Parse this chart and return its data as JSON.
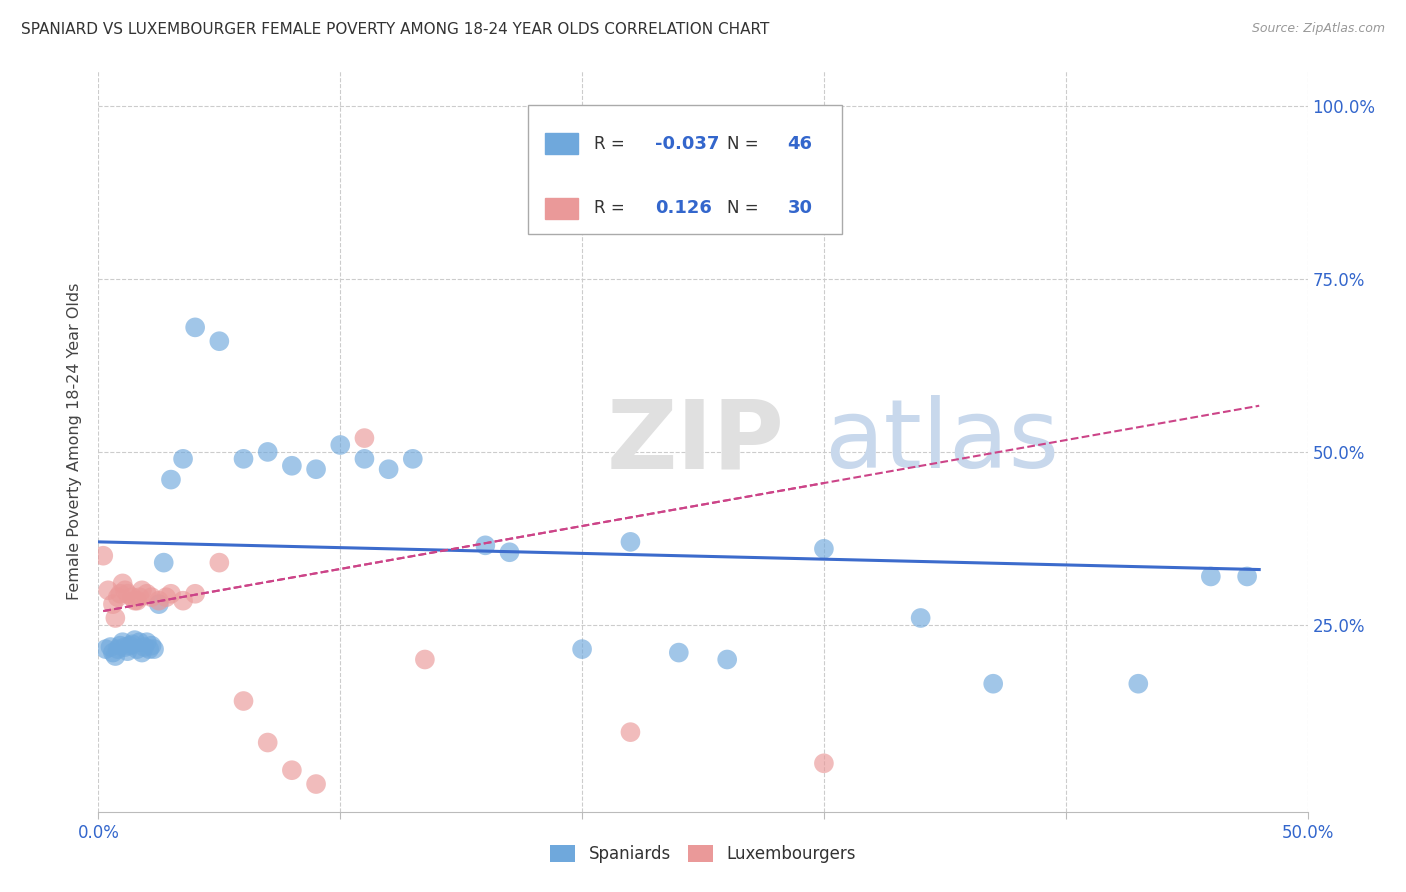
{
  "title": "SPANIARD VS LUXEMBOURGER FEMALE POVERTY AMONG 18-24 YEAR OLDS CORRELATION CHART",
  "source": "Source: ZipAtlas.com",
  "ylabel": "Female Poverty Among 18-24 Year Olds",
  "xlim": [
    0.0,
    0.5
  ],
  "ylim": [
    -0.02,
    1.05
  ],
  "xticks": [
    0.0,
    0.1,
    0.2,
    0.3,
    0.4,
    0.5
  ],
  "xtick_labels_show": [
    "0.0%",
    "",
    "",
    "",
    "",
    "50.0%"
  ],
  "ytick_vals": [
    0.25,
    0.5,
    0.75,
    1.0
  ],
  "ytick_labels": [
    "25.0%",
    "50.0%",
    "75.0%",
    "100.0%"
  ],
  "blue_color": "#6fa8dc",
  "pink_color": "#ea9999",
  "blue_line_color": "#3c6bcc",
  "pink_line_color": "#cc4488",
  "legend_R_blue": "-0.037",
  "legend_N_blue": "46",
  "legend_R_pink": "0.126",
  "legend_N_pink": "30",
  "spaniards_x": [
    0.003,
    0.005,
    0.006,
    0.007,
    0.008,
    0.009,
    0.01,
    0.011,
    0.012,
    0.013,
    0.014,
    0.015,
    0.016,
    0.017,
    0.018,
    0.019,
    0.02,
    0.021,
    0.022,
    0.023,
    0.025,
    0.027,
    0.03,
    0.035,
    0.04,
    0.05,
    0.06,
    0.07,
    0.08,
    0.09,
    0.1,
    0.11,
    0.12,
    0.13,
    0.16,
    0.17,
    0.2,
    0.22,
    0.24,
    0.26,
    0.3,
    0.34,
    0.37,
    0.43,
    0.46,
    0.475
  ],
  "spaniards_y": [
    0.215,
    0.218,
    0.21,
    0.205,
    0.215,
    0.22,
    0.225,
    0.218,
    0.212,
    0.22,
    0.222,
    0.228,
    0.215,
    0.225,
    0.21,
    0.218,
    0.225,
    0.215,
    0.22,
    0.215,
    0.28,
    0.34,
    0.46,
    0.49,
    0.68,
    0.66,
    0.49,
    0.5,
    0.48,
    0.475,
    0.51,
    0.49,
    0.475,
    0.49,
    0.365,
    0.355,
    0.215,
    0.37,
    0.21,
    0.2,
    0.36,
    0.26,
    0.165,
    0.165,
    0.32,
    0.32
  ],
  "luxembourgers_x": [
    0.002,
    0.004,
    0.006,
    0.007,
    0.008,
    0.009,
    0.01,
    0.011,
    0.012,
    0.014,
    0.015,
    0.016,
    0.017,
    0.018,
    0.02,
    0.022,
    0.025,
    0.028,
    0.03,
    0.035,
    0.04,
    0.05,
    0.06,
    0.07,
    0.08,
    0.09,
    0.11,
    0.135,
    0.22,
    0.3
  ],
  "luxembourgers_y": [
    0.35,
    0.3,
    0.28,
    0.26,
    0.29,
    0.295,
    0.31,
    0.3,
    0.295,
    0.29,
    0.285,
    0.285,
    0.29,
    0.3,
    0.295,
    0.29,
    0.285,
    0.29,
    0.295,
    0.285,
    0.295,
    0.34,
    0.14,
    0.08,
    0.04,
    0.02,
    0.52,
    0.2,
    0.095,
    0.05
  ]
}
